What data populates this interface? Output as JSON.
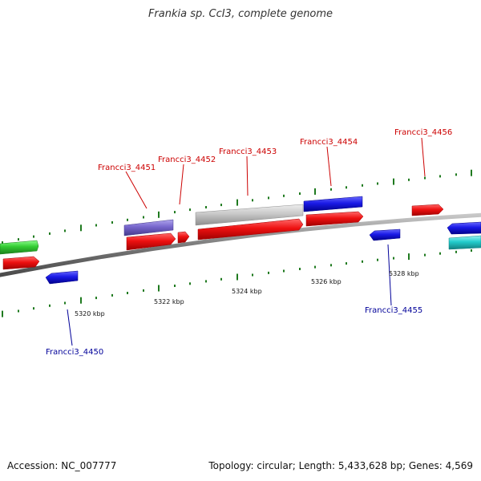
{
  "title": "Frankia sp. CcI3, complete genome",
  "footer": {
    "accession": "Accession: NC_007777",
    "summary": "Topology: circular; Length: 5,433,628 bp; Genes: 4,569"
  },
  "colors": {
    "backbone": "#8a8a8a",
    "tick": "#1f7a1f",
    "forward_label": "#cc0000",
    "reverse_label": "#000099",
    "red": "#ee1111",
    "blue": "#1a1ae6",
    "purple": "#7766cc",
    "gray": "#c8c8c8",
    "green": "#33cc33",
    "cyan": "#22cccc"
  },
  "positions_kbp": {
    "ticks_major": [
      5320,
      5322,
      5324,
      5326,
      5328
    ]
  },
  "scale_labels": [
    "5320 kbp",
    "5322 kbp",
    "5324 kbp",
    "5326 kbp",
    "5328 kbp"
  ],
  "gene_labels": [
    {
      "name": "Francci3_4450",
      "strand": "reverse"
    },
    {
      "name": "Francci3_4451",
      "strand": "forward"
    },
    {
      "name": "Francci3_4452",
      "strand": "forward"
    },
    {
      "name": "Francci3_4453",
      "strand": "forward"
    },
    {
      "name": "Francci3_4454",
      "strand": "forward"
    },
    {
      "name": "Francci3_4455",
      "strand": "reverse"
    },
    {
      "name": "Francci3_4456",
      "strand": "forward"
    }
  ]
}
